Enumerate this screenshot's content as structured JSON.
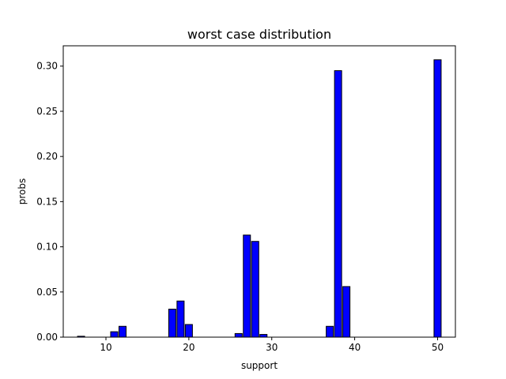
{
  "chart_data": {
    "type": "bar",
    "title": "worst case distribution",
    "xlabel": "support",
    "ylabel": "probs",
    "xlim": [
      4.85,
      52.15
    ],
    "ylim": [
      0,
      0.3225
    ],
    "xticks": [
      10,
      20,
      30,
      40,
      50
    ],
    "yticks": [
      0.0,
      0.05,
      0.1,
      0.15,
      0.2,
      0.25,
      0.3
    ],
    "ytick_labels": [
      "0.00",
      "0.05",
      "0.10",
      "0.15",
      "0.20",
      "0.25",
      "0.30"
    ],
    "bar_width": 0.86,
    "bar_color": "#0000ff",
    "edge_color": "#000000",
    "grid": false,
    "x": [
      7,
      11,
      12,
      18,
      19,
      20,
      26,
      27,
      28,
      29,
      37,
      38,
      39,
      50
    ],
    "values": [
      0.001,
      0.006,
      0.012,
      0.031,
      0.04,
      0.014,
      0.004,
      0.113,
      0.106,
      0.003,
      0.012,
      0.295,
      0.056,
      0.307
    ]
  }
}
